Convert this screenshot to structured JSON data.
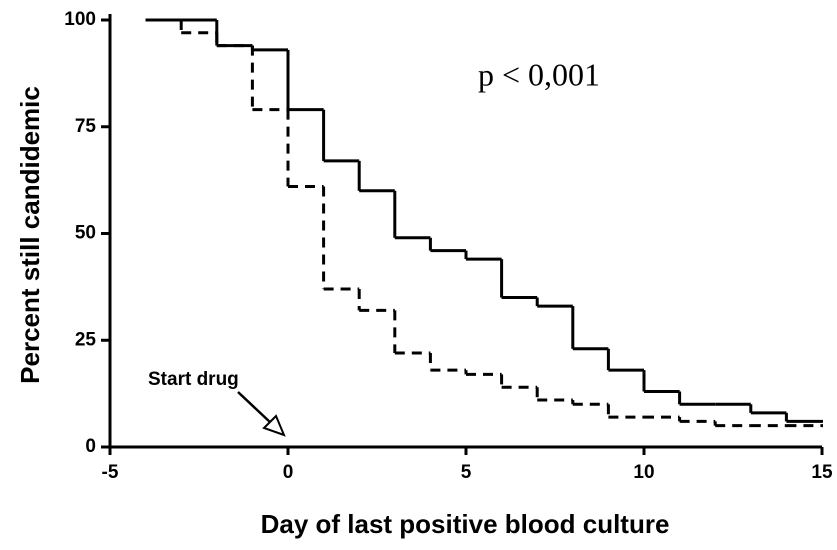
{
  "chart_data": {
    "type": "line",
    "step": "post",
    "xlabel": "Day of last positive blood culture",
    "ylabel": "Percent still candidemic",
    "x": [
      -4,
      -3,
      -2,
      -1,
      0,
      1,
      2,
      3,
      4,
      5,
      6,
      7,
      8,
      9,
      10,
      11,
      12,
      13,
      14,
      15
    ],
    "series": [
      {
        "color": "#000000",
        "dash": "solid",
        "values": [
          100,
          100,
          94,
          93,
          79,
          67,
          60,
          49,
          46,
          44,
          35,
          33,
          23,
          18,
          13,
          10,
          10,
          8,
          6,
          6
        ]
      },
      {
        "color": "#000000",
        "dash": "dashed",
        "values": [
          100,
          97,
          94,
          79,
          61,
          37,
          32,
          22,
          18,
          17,
          14,
          11,
          10,
          7,
          7,
          6,
          5,
          5,
          5,
          5
        ]
      }
    ],
    "xlim": [
      -5,
      15
    ],
    "xticks": [
      -5,
      0,
      5,
      10,
      15
    ],
    "ylim": [
      0,
      100
    ],
    "yticks": [
      0,
      25,
      50,
      75,
      100
    ],
    "grid": false,
    "annotations": [
      "p < 0,001",
      "Start drug"
    ]
  }
}
